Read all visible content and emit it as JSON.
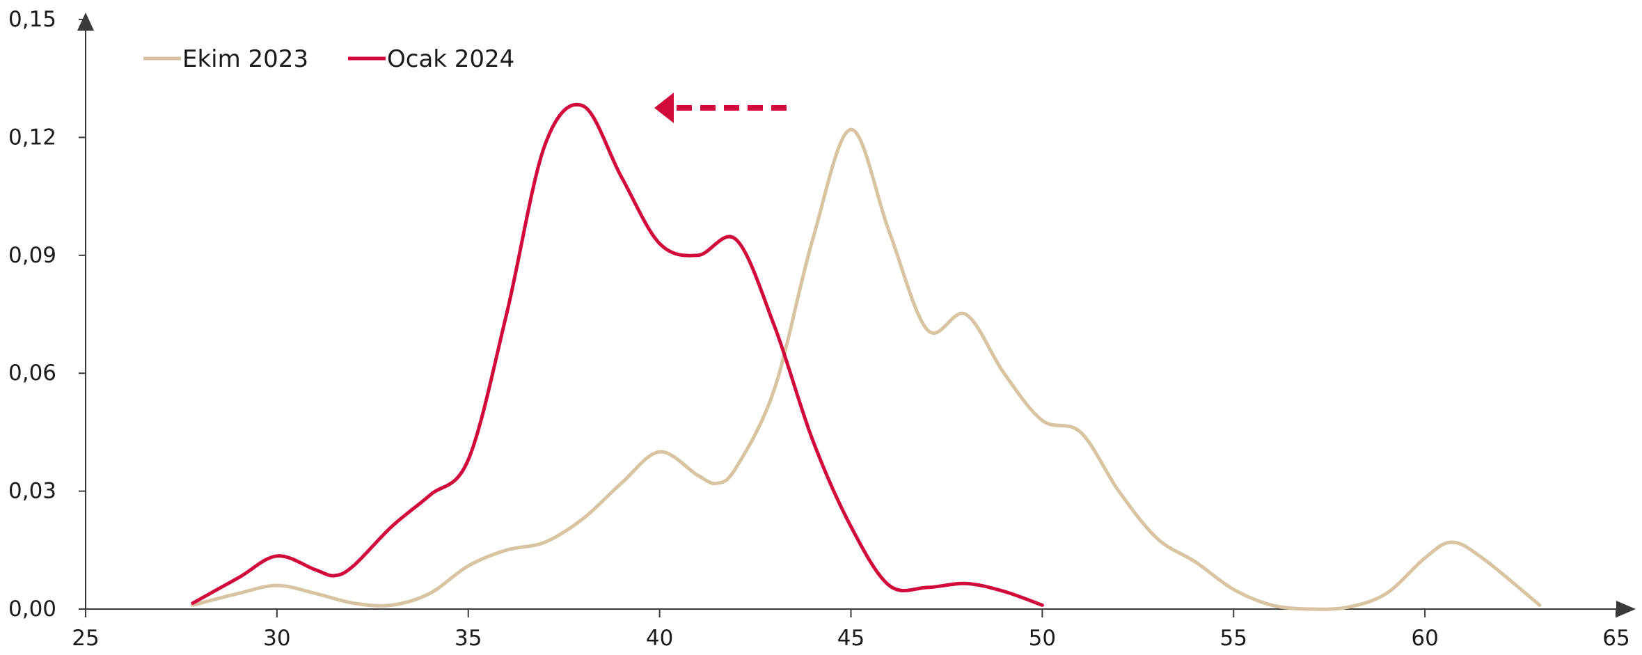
{
  "chart_data": {
    "type": "line",
    "title": "",
    "xlabel": "",
    "ylabel": "",
    "xlim": [
      25,
      65
    ],
    "ylim": [
      0,
      0.15
    ],
    "x_ticks": [
      "25",
      "30",
      "35",
      "40",
      "45",
      "50",
      "55",
      "60",
      "65"
    ],
    "y_ticks": [
      "0,00",
      "0,03",
      "0,06",
      "0,09",
      "0,12",
      "0,15"
    ],
    "grid": false,
    "legend_position": "top-left",
    "legend": [
      "Ekim 2023",
      "Ocak 2024"
    ],
    "annotation": "arrow-left",
    "annotation_color": "#d20a3c",
    "series": [
      {
        "name": "Ekim 2023",
        "color": "#d9c3a0",
        "x": [
          27.8,
          29,
          30,
          31,
          32,
          33,
          34,
          35,
          36,
          37,
          38,
          39,
          40,
          41,
          41.5,
          42,
          43,
          44,
          45,
          46,
          47,
          48,
          49,
          50,
          51,
          52,
          53,
          54,
          55,
          56,
          57,
          58,
          59,
          60,
          60.7,
          61.5,
          63
        ],
        "y": [
          0.001,
          0.004,
          0.006,
          0.004,
          0.0015,
          0.001,
          0.004,
          0.011,
          0.015,
          0.017,
          0.023,
          0.032,
          0.04,
          0.034,
          0.032,
          0.036,
          0.056,
          0.094,
          0.122,
          0.096,
          0.071,
          0.075,
          0.06,
          0.048,
          0.045,
          0.03,
          0.018,
          0.012,
          0.005,
          0.001,
          0.0,
          0.0005,
          0.004,
          0.013,
          0.017,
          0.013,
          0.001
        ]
      },
      {
        "name": "Ocak 2024",
        "color": "#d20a3c",
        "x": [
          27.8,
          29,
          30,
          31,
          31.5,
          32,
          33,
          34,
          35,
          36,
          37,
          38,
          39,
          40,
          41,
          42,
          43,
          44,
          45,
          46,
          47,
          48,
          49,
          50
        ],
        "y": [
          0.0015,
          0.008,
          0.0135,
          0.01,
          0.0085,
          0.011,
          0.021,
          0.029,
          0.038,
          0.075,
          0.118,
          0.128,
          0.11,
          0.093,
          0.09,
          0.094,
          0.072,
          0.043,
          0.021,
          0.006,
          0.0055,
          0.0065,
          0.0045,
          0.001
        ]
      }
    ]
  }
}
